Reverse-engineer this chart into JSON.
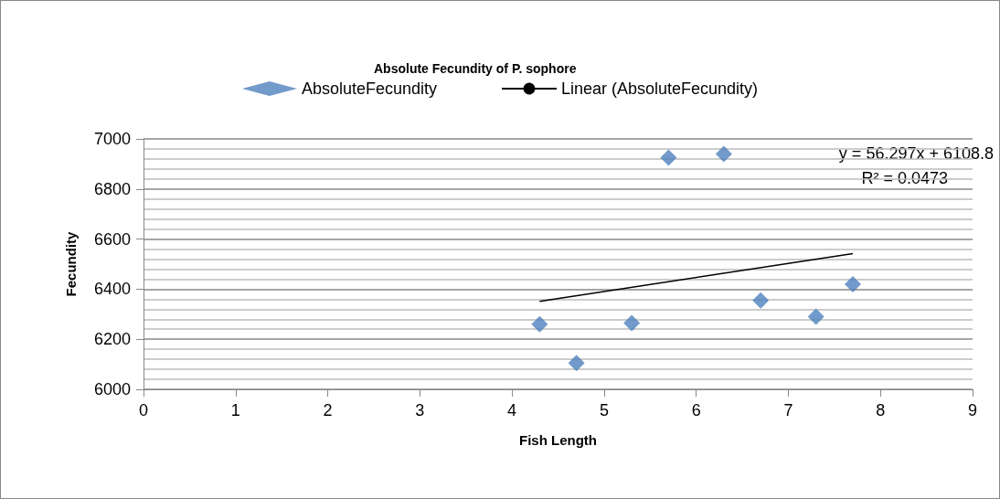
{
  "chart_data": {
    "type": "scatter",
    "title": "Absolute Fecundity of P. sophore",
    "xlabel": "Fish Length",
    "ylabel": "Fecundity",
    "series": [
      {
        "name": "AbsoluteFecundity",
        "color": "#4f81bd",
        "marker": "diamond",
        "x": [
          4.3,
          4.7,
          5.3,
          5.7,
          6.3,
          6.7,
          7.3,
          7.7
        ],
        "values": [
          6260,
          6105,
          6265,
          6925,
          6940,
          6355,
          6290,
          6420
        ]
      },
      {
        "name": "Linear (AbsoluteFecundity)",
        "type": "line",
        "color": "#000000",
        "marker": "none",
        "x": [
          4.3,
          7.7
        ],
        "values": [
          6351,
          6542
        ]
      }
    ],
    "annotations": [
      "y = 56.297x + 6108.8",
      "R² = 0.0473"
    ],
    "xlim": [
      0,
      9
    ],
    "xticks": [
      0,
      1,
      2,
      3,
      4,
      5,
      6,
      7,
      8,
      9
    ],
    "ylim": [
      6000,
      7000
    ],
    "yticks": [
      6000,
      6200,
      6400,
      6600,
      6800,
      7000
    ],
    "grid": "y",
    "legend": "top"
  }
}
